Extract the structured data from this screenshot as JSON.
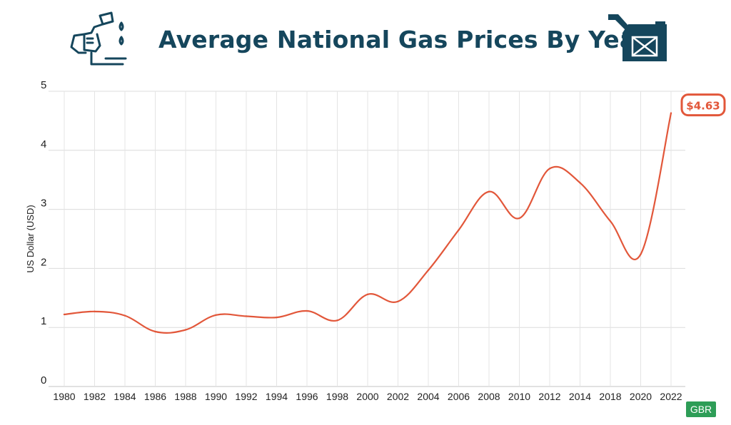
{
  "header": {
    "title": "Average National Gas Prices By Year",
    "left_icon": "fuel-nozzle-icon",
    "right_icon": "jerry-can-icon"
  },
  "badge": "GBR",
  "colors": {
    "title": "#15465c",
    "line": "#e2573a",
    "icon": "#15465c",
    "badge": "#2e9d57"
  },
  "chart_data": {
    "type": "line",
    "title": "Average National Gas Prices By Year",
    "xlabel": "",
    "ylabel": "US Dollar (USD)",
    "ylim": [
      0,
      5
    ],
    "yticks": [
      "0",
      "1",
      "2",
      "3",
      "4",
      "5"
    ],
    "categories": [
      "1980",
      "1982",
      "1984",
      "1986",
      "1988",
      "1990",
      "1992",
      "1994",
      "1996",
      "1998",
      "2000",
      "2002",
      "2004",
      "2006",
      "2008",
      "2010",
      "2012",
      "2014",
      "2018",
      "2020",
      "2022"
    ],
    "series": [
      {
        "values": [
          1.22,
          1.27,
          1.2,
          0.93,
          0.96,
          1.21,
          1.19,
          1.17,
          1.28,
          1.12,
          1.56,
          1.44,
          1.97,
          2.65,
          3.3,
          2.85,
          3.69,
          3.45,
          2.8,
          2.24,
          4.63
        ]
      }
    ],
    "annotations": [
      {
        "category": "2022",
        "value": 4.63,
        "text": "$4.63"
      }
    ],
    "grid": true
  }
}
